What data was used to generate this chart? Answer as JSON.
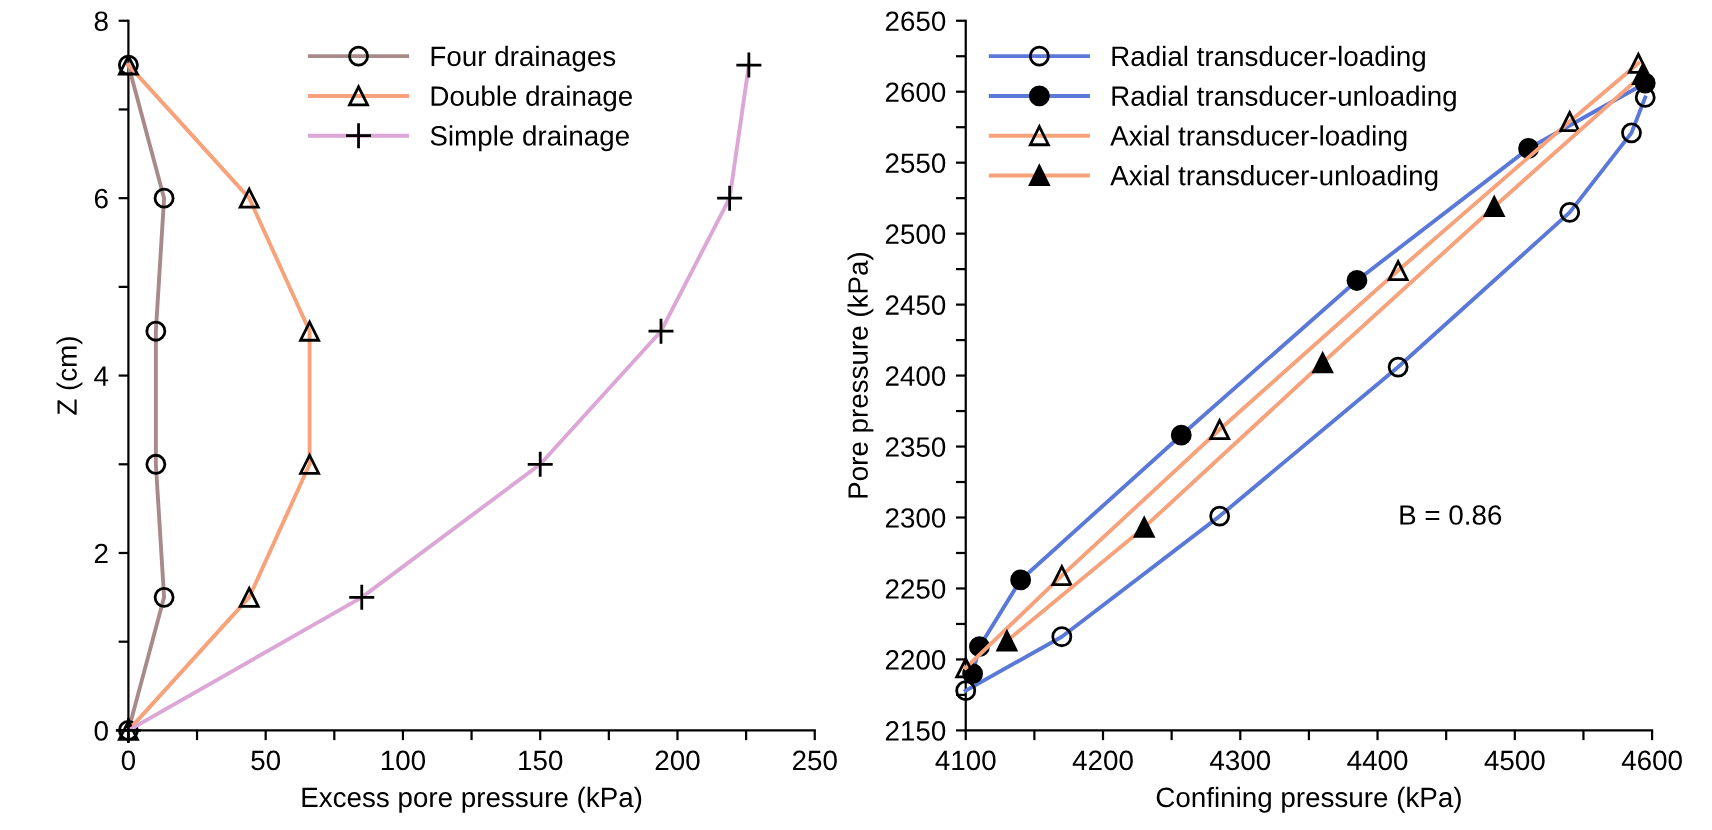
{
  "chart_data": [
    {
      "type": "line",
      "xlabel": "Excess pore pressure (kPa)",
      "ylabel": "Z (cm)",
      "legend": "top",
      "grid": false,
      "xlim": [
        0,
        250
      ],
      "ylim": [
        0,
        8
      ],
      "xticks": [
        0,
        {
          "value": 25,
          "label": null
        },
        50,
        {
          "value": 75,
          "label": null
        },
        100,
        {
          "value": 125,
          "label": null
        },
        150,
        {
          "value": 175,
          "label": null
        },
        200,
        {
          "value": 225,
          "label": null
        },
        250
      ],
      "yticks": [
        0,
        {
          "value": 1,
          "label": null
        },
        2,
        {
          "value": 3,
          "label": null
        },
        4,
        {
          "value": 5,
          "label": null
        },
        6,
        {
          "value": 7,
          "label": null
        },
        8
      ],
      "series": [
        {
          "name": "Four drainages",
          "color": "#a88a8a",
          "marker": "circle",
          "x": [
            0,
            13,
            10,
            10,
            13,
            0
          ],
          "values": [
            0,
            1.5,
            3,
            4.5,
            6,
            7.5
          ]
        },
        {
          "name": "Double drainage",
          "color": "#f7a27a",
          "marker": "triangle",
          "x": [
            0,
            44,
            66,
            66,
            44,
            0
          ],
          "values": [
            0,
            1.5,
            3,
            4.5,
            6,
            7.5
          ]
        },
        {
          "name": "Simple drainage",
          "color": "#dca6d6",
          "marker": "cross",
          "x": [
            0,
            85,
            150,
            194,
            219,
            226
          ],
          "values": [
            0,
            1.5,
            3,
            4.5,
            6,
            7.5
          ]
        }
      ]
    },
    {
      "type": "line",
      "xlabel": "Confining pressure (kPa)",
      "ylabel": "Pore pressure (kPa)",
      "legend": "top left",
      "grid": false,
      "xlim": [
        4100,
        4600
      ],
      "ylim": [
        2150,
        2650
      ],
      "xticks": [
        4100,
        {
          "value": 4150,
          "label": null
        },
        4200,
        {
          "value": 4250,
          "label": null
        },
        4300,
        {
          "value": 4350,
          "label": null
        },
        4400,
        {
          "value": 4450,
          "label": null
        },
        4500,
        {
          "value": 4550,
          "label": null
        },
        4600
      ],
      "yticks": [
        2150,
        {
          "value": 2175,
          "label": null
        },
        2200,
        {
          "value": 2225,
          "label": null
        },
        2250,
        {
          "value": 2275,
          "label": null
        },
        2300,
        {
          "value": 2325,
          "label": null
        },
        2350,
        {
          "value": 2375,
          "label": null
        },
        2400,
        {
          "value": 2425,
          "label": null
        },
        2450,
        {
          "value": 2475,
          "label": null
        },
        2500,
        {
          "value": 2525,
          "label": null
        },
        2550,
        {
          "value": 2575,
          "label": null
        },
        2600,
        {
          "value": 2625,
          "label": null
        },
        2650
      ],
      "annotations": [
        "B = 0.86"
      ],
      "series": [
        {
          "name": "Radial transducer-loading",
          "color": "#5a78d8",
          "marker": "circle",
          "x": [
            4100,
            4170,
            4285,
            4415,
            4540,
            4585,
            4595
          ],
          "values": [
            2178,
            2216,
            2301,
            2406,
            2515,
            2571,
            2596
          ]
        },
        {
          "name": "Radial transducer-unloading",
          "color": "#5a78d8",
          "marker": "circle",
          "x": [
            4595,
            4510,
            4385,
            4257,
            4140,
            4110,
            4105
          ],
          "values": [
            2606,
            2560,
            2467,
            2358,
            2256,
            2209,
            2190
          ]
        },
        {
          "name": "Axial transducer-loading",
          "color": "#f7a27a",
          "marker": "triangle",
          "x": [
            4100,
            4170,
            4285,
            4415,
            4540,
            4590
          ],
          "values": [
            2194,
            2259,
            2362,
            2474,
            2579,
            2620
          ]
        },
        {
          "name": "Axial transducer-unloading",
          "color": "#f7a27a",
          "marker": "triangle",
          "x": [
            4593,
            4485,
            4360,
            4230,
            4130
          ],
          "values": [
            2612,
            2519,
            2409,
            2293,
            2213
          ]
        }
      ]
    }
  ]
}
